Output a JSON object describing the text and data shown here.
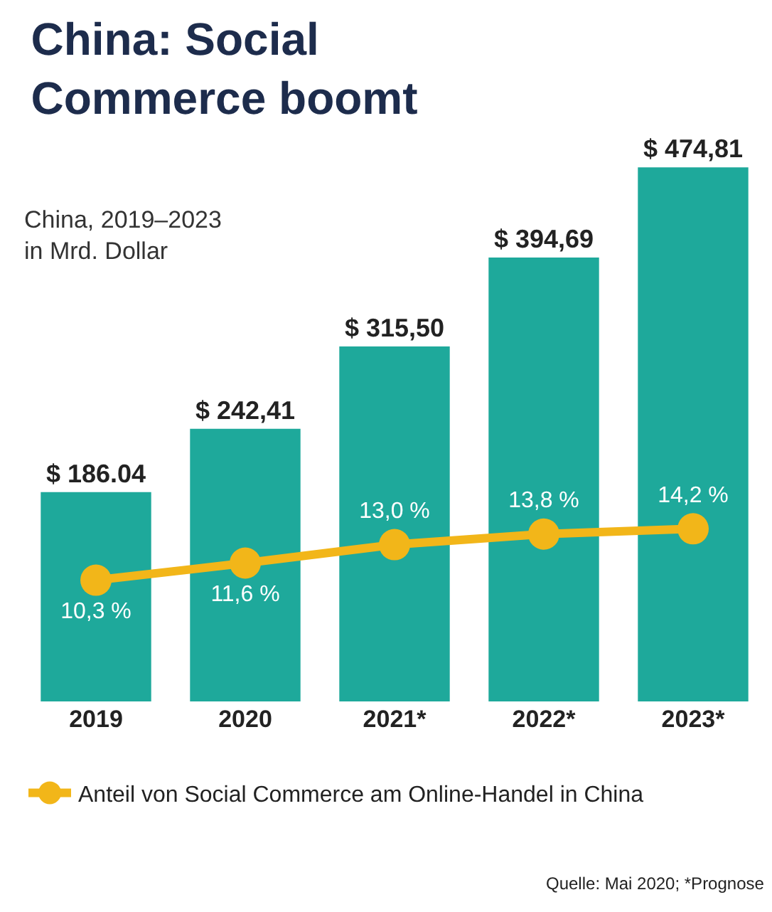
{
  "chart_data": {
    "type": "bar",
    "title": "China: Social\nCommerce boomt",
    "subtitle": "China, 2019–2023\nin Mrd. Dollar",
    "categories": [
      "2019",
      "2020",
      "2021*",
      "2022*",
      "2023*"
    ],
    "series": [
      {
        "color": "#1ea99b",
        "values": [
          186.04,
          242.41,
          315.5,
          394.69,
          474.81
        ],
        "value_labels": [
          "$ 186.04",
          "$ 242,41",
          "$ 315,50",
          "$ 394,69",
          "$ 474,81"
        ]
      },
      {
        "type": "line",
        "axis": "y2",
        "name": "Anteil von Social Commerce am Online-Handel in China",
        "color": "#f2b619",
        "marker": "circle",
        "values": [
          10.3,
          11.6,
          13.0,
          13.8,
          14.2
        ],
        "value_labels": [
          "10,3 %",
          "11,6 %",
          "13,0 %",
          "13,8 %",
          "14,2 %"
        ]
      }
    ],
    "tick_labels": "x",
    "grid": false,
    "legend": "bottom",
    "annotations": [
      "Quelle: Mai 2020; *Prognose"
    ]
  }
}
